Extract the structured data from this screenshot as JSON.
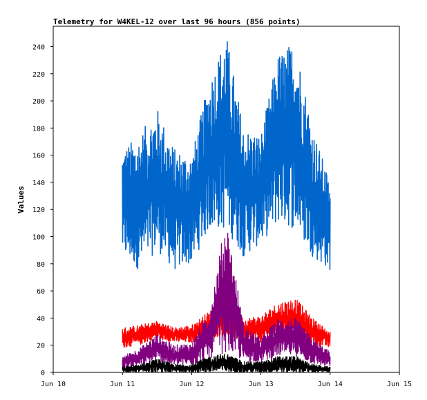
{
  "chart_data": {
    "type": "line",
    "title": "Telemetry for W4KEL-12 over last 96 hours (856 points)",
    "xlabel": "",
    "ylabel": "Values",
    "x_ticks": [
      "Jun 10",
      "Jun 11",
      "Jun 12",
      "Jun 13",
      "Jun 14",
      "Jun 15"
    ],
    "y_ticks": [
      0,
      20,
      40,
      60,
      80,
      100,
      120,
      140,
      160,
      180,
      200,
      220,
      240
    ],
    "xlim": [
      "Jun 10",
      "Jun 15"
    ],
    "ylim": [
      0,
      255
    ],
    "grid": false,
    "legend": "none",
    "series": [
      {
        "color": "#0066cc",
        "x_days": [
          1.0,
          1.25,
          1.5,
          1.75,
          2.0,
          2.25,
          2.5,
          2.75,
          3.0,
          3.25,
          3.5,
          3.75,
          4.0
        ],
        "low": [
          85,
          75,
          90,
          75,
          80,
          105,
          105,
          85,
          95,
          110,
          105,
          85,
          75
        ],
        "high": [
          165,
          175,
          195,
          165,
          160,
          215,
          250,
          180,
          175,
          235,
          245,
          180,
          140
        ]
      },
      {
        "color": "#ff0000",
        "x_days": [
          1.0,
          1.25,
          1.5,
          1.75,
          2.0,
          2.25,
          2.5,
          2.75,
          3.0,
          3.25,
          3.5,
          3.75,
          4.0
        ],
        "low": [
          18,
          20,
          25,
          22,
          22,
          25,
          27,
          22,
          22,
          25,
          25,
          20,
          18
        ],
        "high": [
          33,
          35,
          38,
          33,
          35,
          45,
          55,
          40,
          42,
          52,
          55,
          40,
          30
        ]
      },
      {
        "color": "#800080",
        "x_days": [
          1.0,
          1.25,
          1.5,
          1.75,
          2.0,
          2.25,
          2.5,
          2.75,
          3.0,
          3.25,
          3.5,
          3.75,
          4.0
        ],
        "low": [
          3,
          5,
          8,
          5,
          5,
          10,
          15,
          8,
          8,
          12,
          12,
          6,
          4
        ],
        "high": [
          12,
          18,
          28,
          20,
          22,
          45,
          115,
          35,
          25,
          40,
          40,
          25,
          15
        ]
      },
      {
        "color": "#000000",
        "x_days": [
          1.0,
          1.25,
          1.5,
          1.75,
          2.0,
          2.25,
          2.5,
          2.75,
          3.0,
          3.25,
          3.5,
          3.75,
          4.0
        ],
        "low": [
          0,
          0,
          0,
          0,
          0,
          0,
          0,
          0,
          0,
          0,
          0,
          0,
          0
        ],
        "high": [
          4,
          6,
          10,
          6,
          6,
          12,
          14,
          8,
          8,
          12,
          12,
          6,
          4
        ]
      }
    ]
  }
}
